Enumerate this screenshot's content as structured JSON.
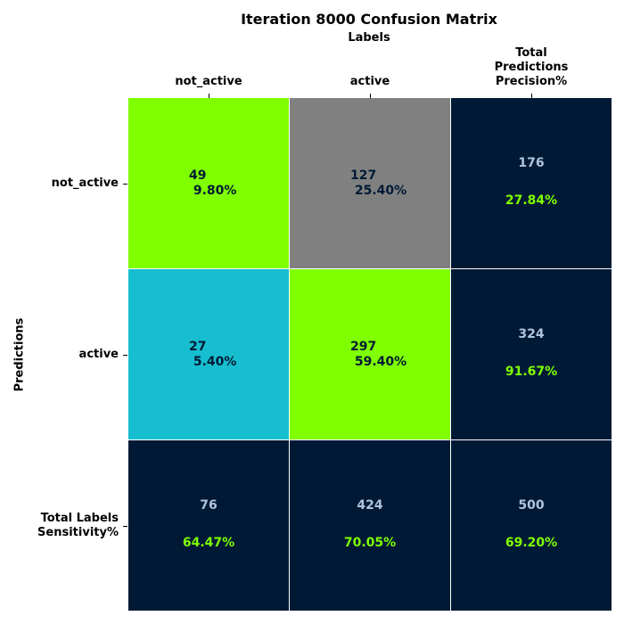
{
  "chart_data": {
    "type": "heatmap",
    "title": "Iteration 8000 Confusion Matrix",
    "xlabel": "Labels",
    "ylabel": "Predictions",
    "column_labels": [
      "not_active",
      "active",
      "Total\nPredictions\nPrecision%"
    ],
    "row_labels": [
      "not_active",
      "active",
      "Total Labels\nSensitivity%"
    ],
    "matrix": [
      [
        {
          "count": "49",
          "percent": "9.80%"
        },
        {
          "count": "127",
          "percent": "25.40%"
        }
      ],
      [
        {
          "count": "27",
          "percent": "5.40%"
        },
        {
          "count": "297",
          "percent": "59.40%"
        }
      ]
    ],
    "row_totals": [
      {
        "count": "176",
        "percent": "27.84%"
      },
      {
        "count": "324",
        "percent": "91.67%"
      }
    ],
    "column_totals": [
      {
        "count": "76",
        "percent": "64.47%"
      },
      {
        "count": "424",
        "percent": "70.05%"
      }
    ],
    "grand_total": {
      "count": "500",
      "percent": "69.20%"
    },
    "colors": {
      "matrix_cells": [
        [
          "#7fff00",
          "#808080"
        ],
        [
          "#17becf",
          "#7fff00"
        ]
      ],
      "totals_background": "#001a35",
      "matrix_text": "#001a35",
      "totals_count_text": "#b0c4de",
      "totals_percent_text": "#7fff00",
      "cell_border": "#ffffff"
    }
  }
}
